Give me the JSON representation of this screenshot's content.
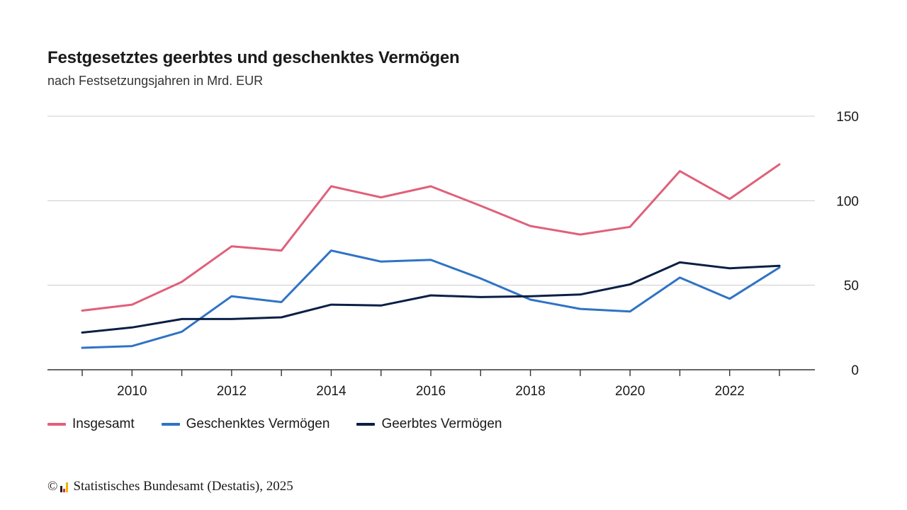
{
  "header": {
    "title": "Festgesetztes geerbtes und geschenktes Vermögen",
    "subtitle": "nach Festsetzungsjahren in Mrd. EUR"
  },
  "footer": {
    "copyright_symbol": "©",
    "source": "Statistisches Bundesamt (Destatis), 2025"
  },
  "chart_data": {
    "type": "line",
    "x": [
      2009,
      2010,
      2011,
      2012,
      2013,
      2014,
      2015,
      2016,
      2017,
      2018,
      2019,
      2020,
      2021,
      2022,
      2023
    ],
    "x_tick_labels": [
      "2010",
      "2012",
      "2014",
      "2016",
      "2018",
      "2020",
      "2022"
    ],
    "y_tick_labels": [
      "0",
      "50",
      "100",
      "150"
    ],
    "ylim": [
      0,
      150
    ],
    "y_axis_side": "right",
    "grid": "horizontal",
    "legend_position": "bottom-left",
    "series": [
      {
        "name": "Insgesamt",
        "color": "#e0607a",
        "values": [
          35,
          38.5,
          52,
          73,
          70.5,
          108.5,
          102,
          108.5,
          97,
          85,
          80,
          84.5,
          117.5,
          101,
          121.5
        ]
      },
      {
        "name": "Geschenktes Vermögen",
        "color": "#2f73c5",
        "values": [
          13,
          14,
          22.5,
          43.5,
          40,
          70.5,
          64,
          65,
          54,
          41.5,
          36,
          34.5,
          54.5,
          42,
          60.5
        ]
      },
      {
        "name": "Geerbtes Vermögen",
        "color": "#0b1f45",
        "values": [
          22,
          25,
          30,
          30,
          31,
          38.5,
          38,
          44,
          43,
          43.5,
          44.5,
          50.5,
          63.5,
          60,
          61.5
        ]
      }
    ]
  }
}
